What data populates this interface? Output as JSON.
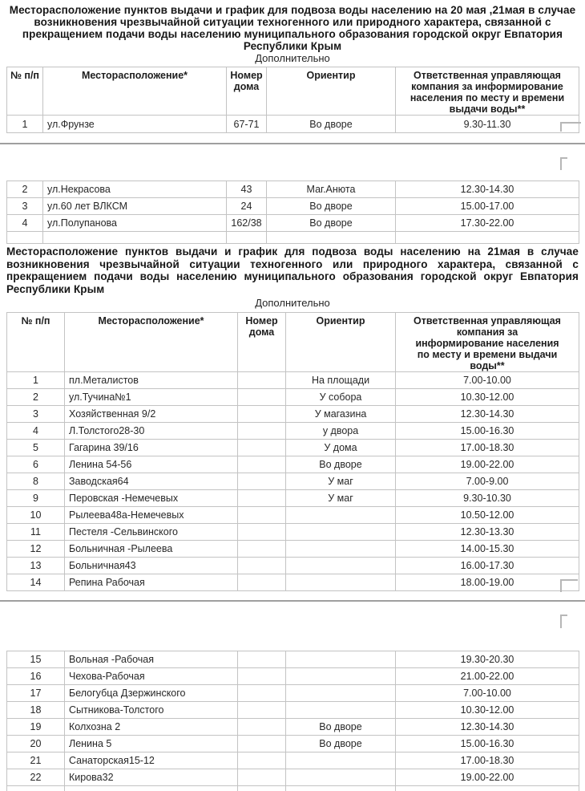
{
  "titles": {
    "title1": "Месторасположение пунктов выдачи и график  для подвоза воды населению на 20 мая ,21мая  в случае возникновения чрезвычайной ситуации техногенного или природного характера, связанной с прекращением подачи воды населению муниципального образования городской округ Евпатория Республики Крым",
    "additional1": "Дополнительно",
    "title2": "Месторасположение пунктов выдачи и график  для подвоза воды населению на 21мая  в случае возникновения чрезвычайной ситуации техногенного или природного характера, связанной с прекращением подачи воды населению муниципального образования городской округ Евпатория Республики Крым",
    "additional2": "Дополнительно"
  },
  "headers": {
    "num": "№ п/п",
    "location": "Месторасположение*",
    "house": "Номер дома",
    "landmark": "Ориентир",
    "company": "Ответственная управляющая компания за информирование населения по месту и времени выдачи воды**"
  },
  "table1": {
    "segment_a": [
      [
        "1",
        "ул.Фрунзе",
        "67-71",
        "Во дворе",
        "9.30-11.30"
      ]
    ],
    "segment_b": [
      [
        "2",
        "ул.Некрасова",
        "43",
        "Маг.Анюта",
        "12.30-14.30"
      ],
      [
        "3",
        "ул.60 лет ВЛКСМ",
        "24",
        "Во дворе",
        "15.00-17.00"
      ],
      [
        "4",
        "ул.Полупанова",
        "162/38",
        "Во дворе",
        "17.30-22.00"
      ]
    ]
  },
  "table2": {
    "segment_a": [
      [
        "1",
        "пл.Металистов",
        "",
        "На площади",
        "7.00-10.00"
      ],
      [
        "2",
        "ул.Тучина№1",
        "",
        "У собора",
        "10.30-12.00"
      ],
      [
        "3",
        "Хозяйственная 9/2",
        "",
        "У магазина",
        "12.30-14.30"
      ],
      [
        "4",
        "Л.Толстого28-30",
        "",
        "у двора",
        "15.00-16.30"
      ],
      [
        "5",
        "Гагарина 39/16",
        "",
        "У дома",
        "17.00-18.30"
      ],
      [
        "6",
        "Ленина 54-56",
        "",
        "Во дворе",
        "19.00-22.00"
      ],
      [
        "8",
        "Заводская64",
        "",
        "У маг",
        "7.00-9.00"
      ],
      [
        "9",
        "Перовская -Немечевых",
        "",
        "У маг",
        "9.30-10.30"
      ],
      [
        "10",
        "Рылеева48а-Немечевых",
        "",
        "",
        "10.50-12.00"
      ],
      [
        "11",
        "Пестеля -Сельвинского",
        "",
        "",
        "12.30-13.30"
      ],
      [
        "12",
        "Больничная -Рылеева",
        "",
        "",
        "14.00-15.30"
      ],
      [
        "13",
        "Больничная43",
        "",
        "",
        "16.00-17.30"
      ],
      [
        "14",
        "Репина Рабочая",
        "",
        "",
        "18.00-19.00"
      ]
    ],
    "segment_b": [
      [
        "15",
        "Вольная -Рабочая",
        "",
        "",
        "19.30-20.30"
      ],
      [
        "16",
        "Чехова-Рабочая",
        "",
        "",
        "21.00-22.00"
      ],
      [
        "17",
        "Белогубца Дзержинского",
        "",
        "",
        "7.00-10.00"
      ],
      [
        "18",
        "Сытникова-Толстого",
        "",
        "",
        "10.30-12.00"
      ],
      [
        "19",
        "Колхозна 2",
        "",
        "Во дворе",
        "12.30-14.30"
      ],
      [
        "20",
        "Ленина 5",
        "",
        "Во дворе",
        "15.00-16.30"
      ],
      [
        "21",
        "Санаторская15-12",
        "",
        "",
        "17.00-18.30"
      ],
      [
        "22",
        "Кирова32",
        "",
        "",
        "19.00-22.00"
      ]
    ]
  }
}
